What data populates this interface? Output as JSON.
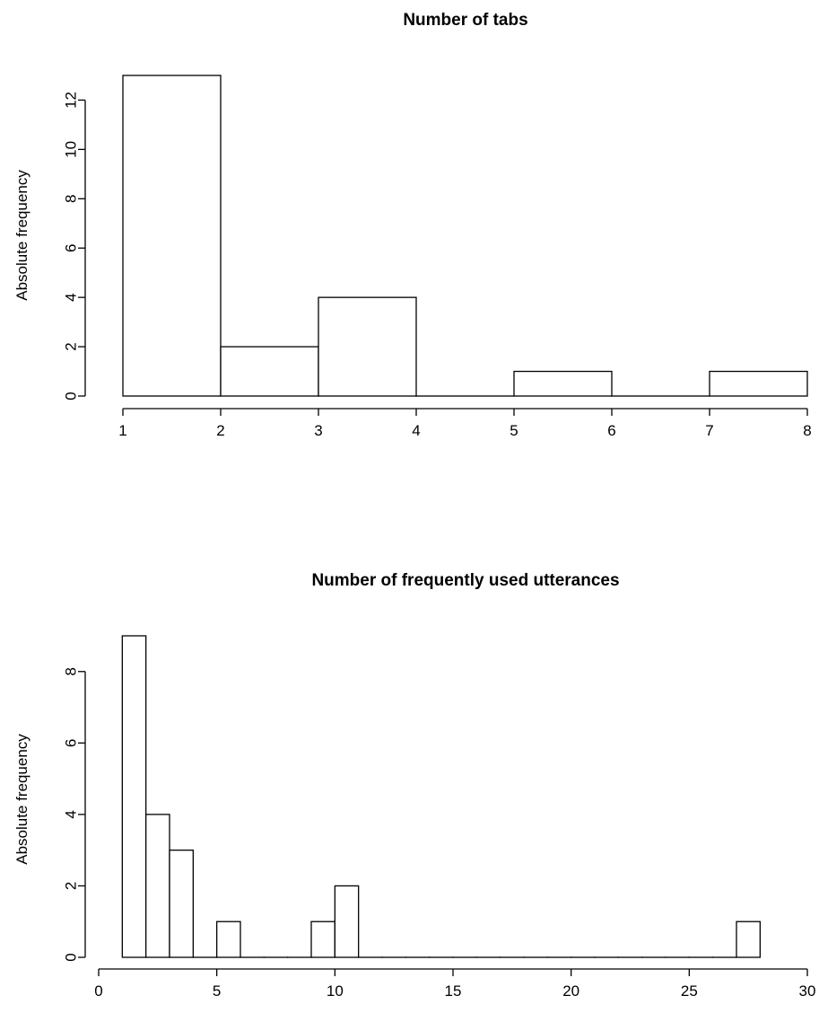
{
  "chart_data": [
    {
      "type": "bar",
      "title": "Number of tabs",
      "xlabel": "",
      "ylabel": "Absolute frequency",
      "bins": [
        [
          1,
          2
        ],
        [
          2,
          3
        ],
        [
          3,
          4
        ],
        [
          4,
          5
        ],
        [
          5,
          6
        ],
        [
          6,
          7
        ],
        [
          7,
          8
        ]
      ],
      "values": [
        13,
        2,
        4,
        0,
        1,
        0,
        1
      ],
      "xlim": [
        1,
        8
      ],
      "ylim": [
        0,
        13
      ],
      "xticks": [
        1,
        2,
        3,
        4,
        5,
        6,
        7,
        8
      ],
      "yticks": [
        0,
        2,
        4,
        6,
        8,
        10,
        12
      ],
      "grid": false
    },
    {
      "type": "bar",
      "title": "Number of frequently used utterances",
      "xlabel": "",
      "ylabel": "Absolute frequency",
      "bins": [
        [
          1,
          2
        ],
        [
          2,
          3
        ],
        [
          3,
          4
        ],
        [
          4,
          5
        ],
        [
          5,
          6
        ],
        [
          6,
          7
        ],
        [
          7,
          8
        ],
        [
          8,
          9
        ],
        [
          9,
          10
        ],
        [
          10,
          11
        ],
        [
          11,
          12
        ],
        [
          12,
          13
        ],
        [
          13,
          14
        ],
        [
          14,
          15
        ],
        [
          15,
          16
        ],
        [
          16,
          17
        ],
        [
          17,
          18
        ],
        [
          18,
          19
        ],
        [
          19,
          20
        ],
        [
          20,
          21
        ],
        [
          21,
          22
        ],
        [
          22,
          23
        ],
        [
          23,
          24
        ],
        [
          24,
          25
        ],
        [
          25,
          26
        ],
        [
          26,
          27
        ],
        [
          27,
          28
        ]
      ],
      "values": [
        9,
        4,
        3,
        0,
        1,
        0,
        0,
        0,
        1,
        2,
        0,
        0,
        0,
        0,
        0,
        0,
        0,
        0,
        0,
        0,
        0,
        0,
        0,
        0,
        0,
        0,
        1
      ],
      "xlim": [
        0,
        30
      ],
      "ylim": [
        0,
        9
      ],
      "xticks": [
        0,
        5,
        10,
        15,
        20,
        25,
        30
      ],
      "yticks": [
        0,
        2,
        4,
        6,
        8
      ],
      "grid": false
    }
  ]
}
